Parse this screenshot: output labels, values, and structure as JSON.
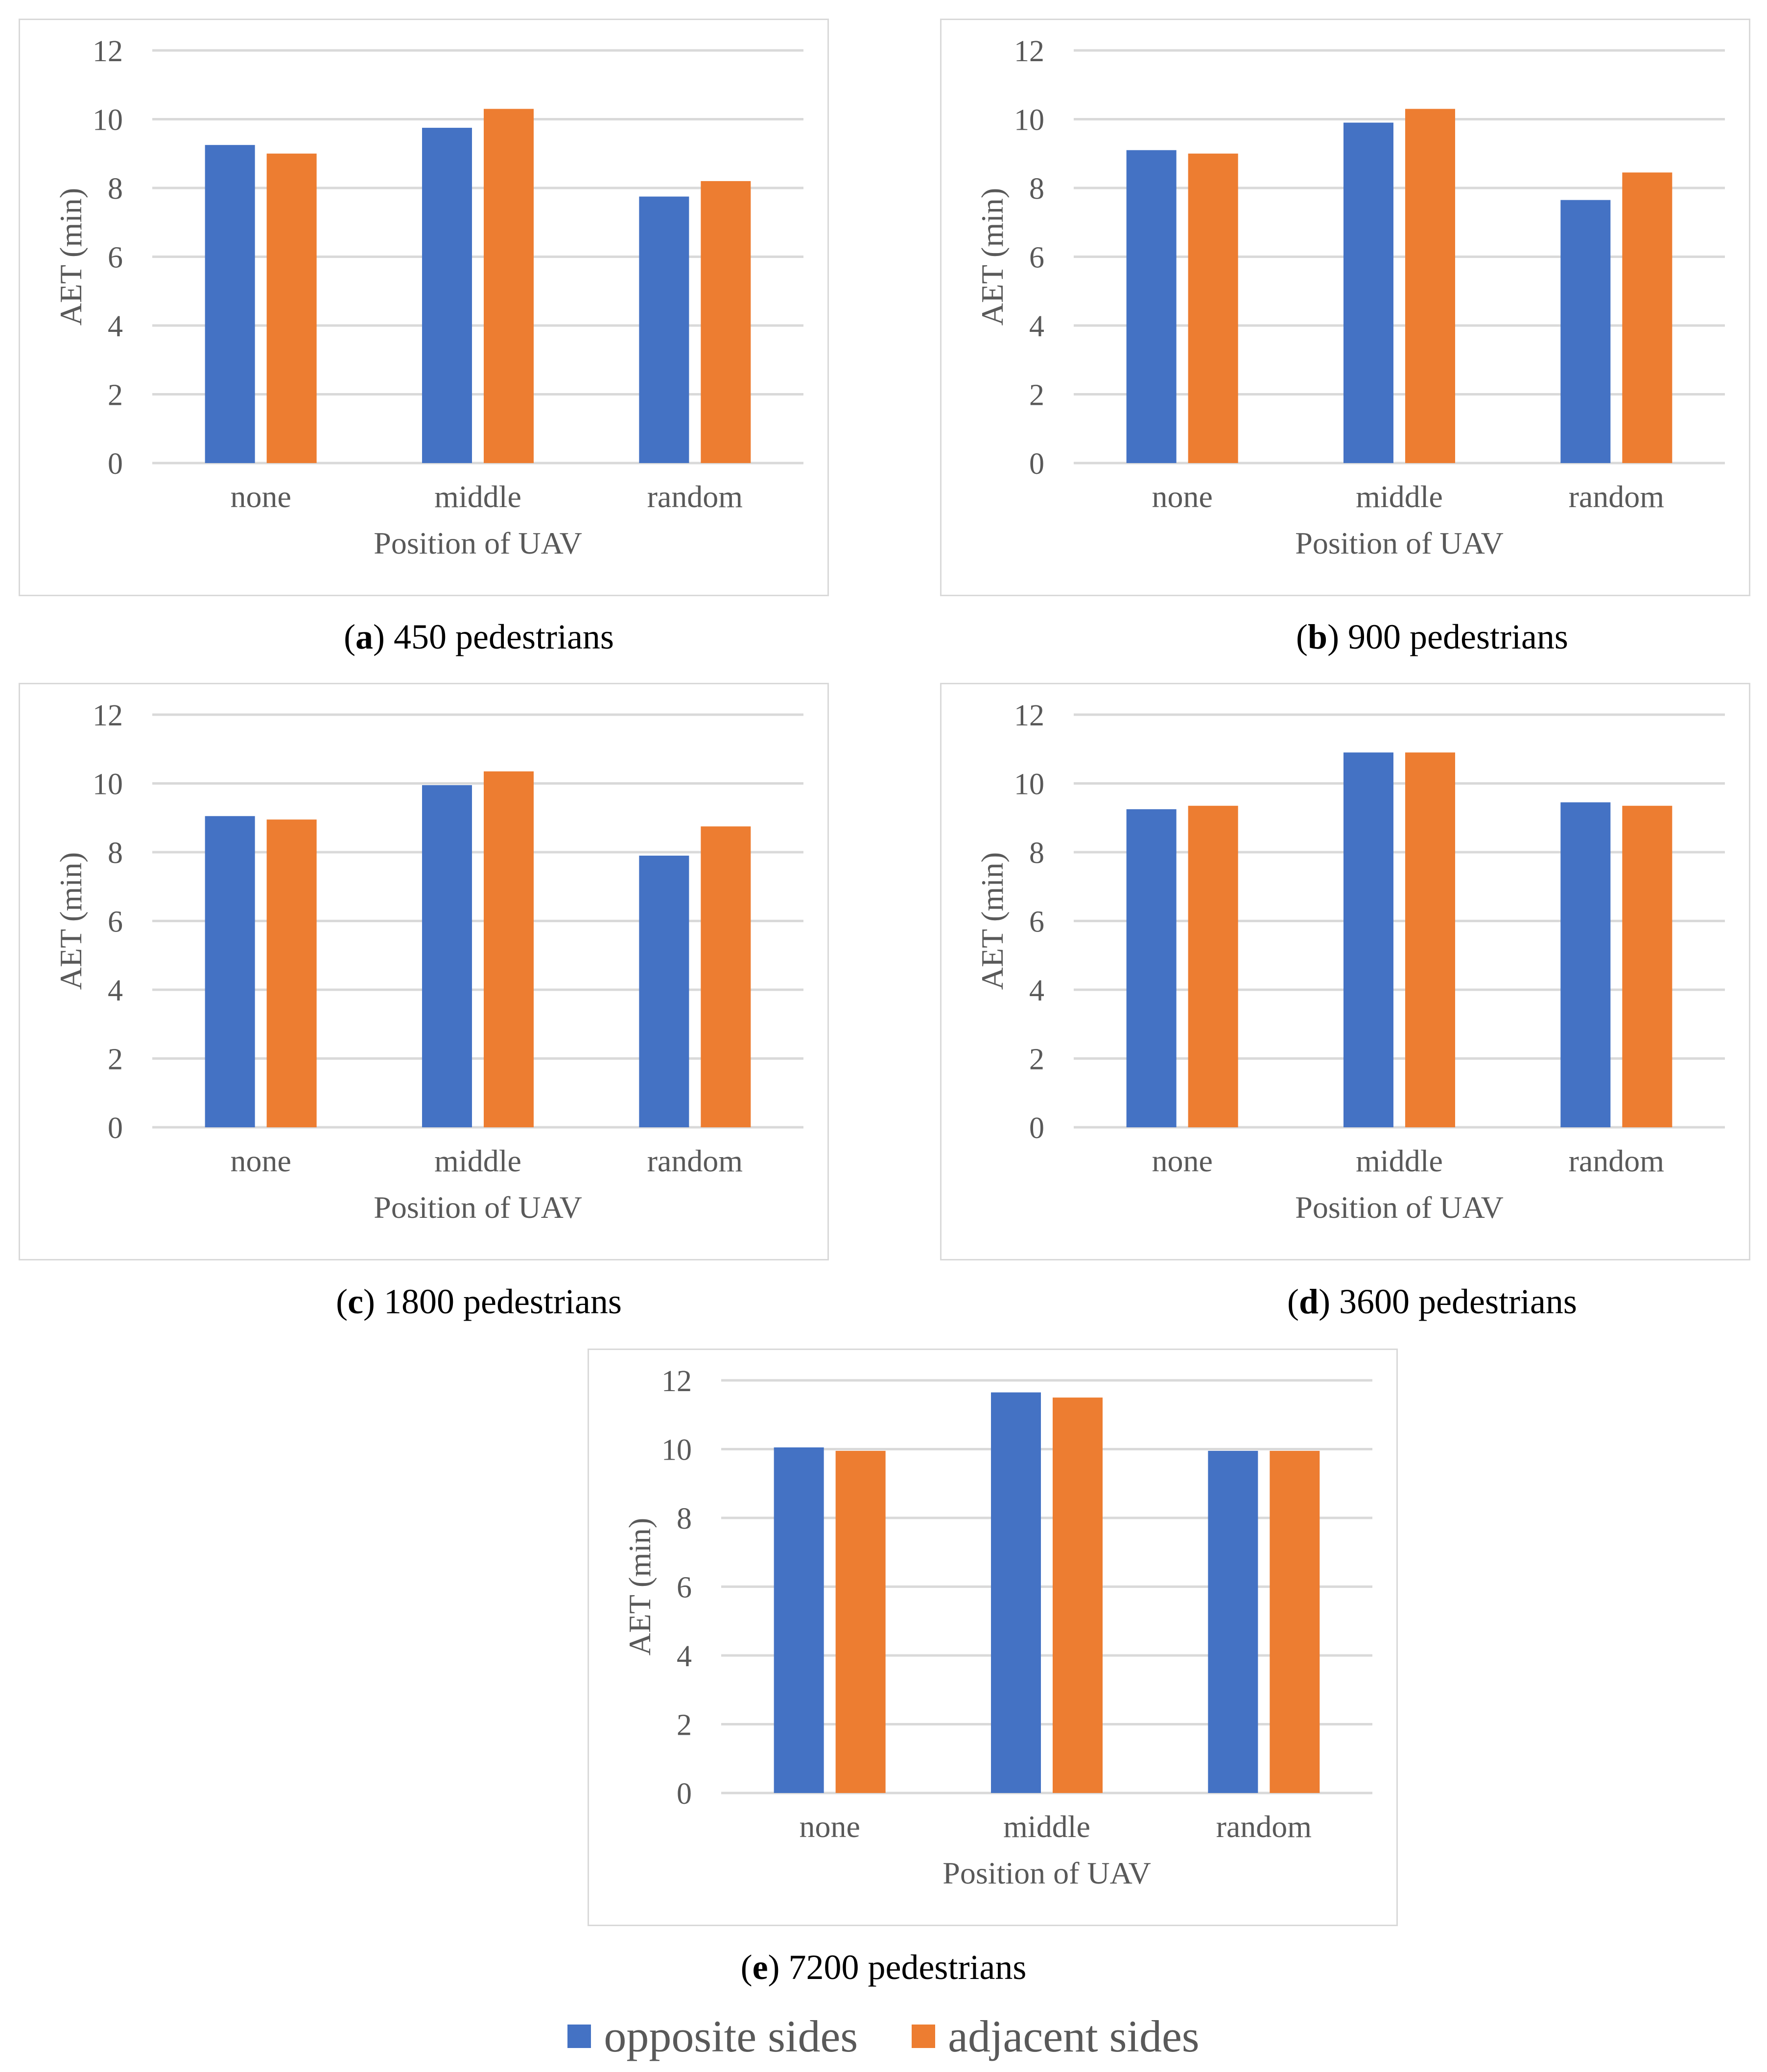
{
  "colors": {
    "opposite": "#4472C4",
    "adjacent": "#ED7D31",
    "grid": "#D9D9D9",
    "axis_text": "#595959"
  },
  "legend": [
    {
      "name": "opposite sides",
      "color": "#4472C4"
    },
    {
      "name": "adjacent sides",
      "color": "#ED7D31"
    }
  ],
  "chart_data": [
    {
      "id": "a",
      "type": "bar",
      "caption_letter": "a",
      "caption_text": "450 pedestrians",
      "categories": [
        "none",
        "middle",
        "random"
      ],
      "series": [
        {
          "name": "opposite sides",
          "values": [
            9.25,
            9.75,
            7.75
          ]
        },
        {
          "name": "adjacent sides",
          "values": [
            9.0,
            10.3,
            8.2
          ]
        }
      ],
      "xlabel": "Position of UAV",
      "ylabel": "AET (min)",
      "ylim": [
        0,
        12
      ],
      "yticks": [
        "0",
        "2",
        "4",
        "6",
        "8",
        "10",
        "12"
      ],
      "grid": true
    },
    {
      "id": "b",
      "type": "bar",
      "caption_letter": "b",
      "caption_text": "900 pedestrians",
      "categories": [
        "none",
        "middle",
        "random"
      ],
      "series": [
        {
          "name": "opposite sides",
          "values": [
            9.1,
            9.9,
            7.65
          ]
        },
        {
          "name": "adjacent sides",
          "values": [
            9.0,
            10.3,
            8.45
          ]
        }
      ],
      "xlabel": "Position of UAV",
      "ylabel": "AET (min)",
      "ylim": [
        0,
        12
      ],
      "yticks": [
        "0",
        "2",
        "4",
        "6",
        "8",
        "10",
        "12"
      ],
      "grid": true
    },
    {
      "id": "c",
      "type": "bar",
      "caption_letter": "c",
      "caption_text": "1800 pedestrians",
      "categories": [
        "none",
        "middle",
        "random"
      ],
      "series": [
        {
          "name": "opposite sides",
          "values": [
            9.05,
            9.95,
            7.9
          ]
        },
        {
          "name": "adjacent sides",
          "values": [
            8.95,
            10.35,
            8.75
          ]
        }
      ],
      "xlabel": "Position of UAV",
      "ylabel": "AET (min)",
      "ylim": [
        0,
        12
      ],
      "yticks": [
        "0",
        "2",
        "4",
        "6",
        "8",
        "10",
        "12"
      ],
      "grid": true
    },
    {
      "id": "d",
      "type": "bar",
      "caption_letter": "d",
      "caption_text": "3600 pedestrians",
      "categories": [
        "none",
        "middle",
        "random"
      ],
      "series": [
        {
          "name": "opposite sides",
          "values": [
            9.25,
            10.9,
            9.45
          ]
        },
        {
          "name": "adjacent sides",
          "values": [
            9.35,
            10.9,
            9.35
          ]
        }
      ],
      "xlabel": "Position of UAV",
      "ylabel": "AET (min)",
      "ylim": [
        0,
        12
      ],
      "yticks": [
        "0",
        "2",
        "4",
        "6",
        "8",
        "10",
        "12"
      ],
      "grid": true
    },
    {
      "id": "e",
      "type": "bar",
      "caption_letter": "e",
      "caption_text": "7200 pedestrians",
      "categories": [
        "none",
        "middle",
        "random"
      ],
      "series": [
        {
          "name": "opposite sides",
          "values": [
            10.05,
            11.65,
            9.95
          ]
        },
        {
          "name": "adjacent sides",
          "values": [
            9.95,
            11.5,
            9.95
          ]
        }
      ],
      "xlabel": "Position of UAV",
      "ylabel": "AET (min)",
      "ylim": [
        0,
        12
      ],
      "yticks": [
        "0",
        "2",
        "4",
        "6",
        "8",
        "10",
        "12"
      ],
      "grid": true
    }
  ]
}
